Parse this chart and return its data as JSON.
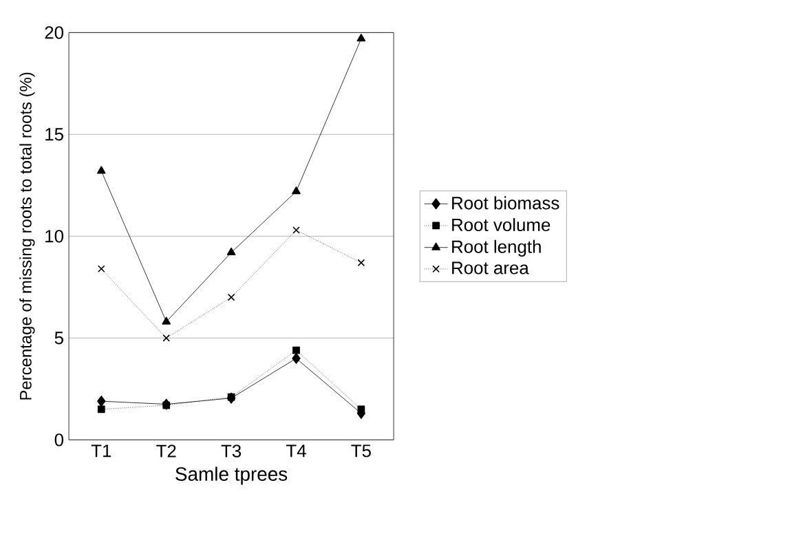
{
  "chart_data": {
    "type": "line",
    "xlabel": "Samle tprees",
    "ylabel": "Percentage of missing roots to total roots (%)",
    "categories": [
      "T1",
      "T2",
      "T3",
      "T4",
      "T5"
    ],
    "series": [
      {
        "name": "Root biomass",
        "color": "#000000",
        "marker": "diamond",
        "line_style": "solid",
        "values": [
          1.9,
          1.75,
          2.05,
          4.0,
          1.3
        ]
      },
      {
        "name": "Root volume",
        "color": "#000000",
        "marker": "square",
        "line_style": "dotted",
        "values": [
          1.5,
          1.7,
          2.1,
          4.4,
          1.5
        ]
      },
      {
        "name": "Root length",
        "color": "#000000",
        "marker": "triangle",
        "line_style": "solid",
        "values": [
          13.2,
          5.8,
          9.2,
          12.2,
          19.7
        ]
      },
      {
        "name": "Root area",
        "color": "#000000",
        "marker": "cross",
        "line_style": "dotted",
        "values": [
          8.4,
          5.0,
          7.0,
          10.3,
          8.7
        ]
      }
    ],
    "ylim": [
      0,
      20
    ],
    "yticks": [
      0,
      5,
      10,
      15,
      20
    ],
    "grid": "y",
    "legend": "right"
  }
}
